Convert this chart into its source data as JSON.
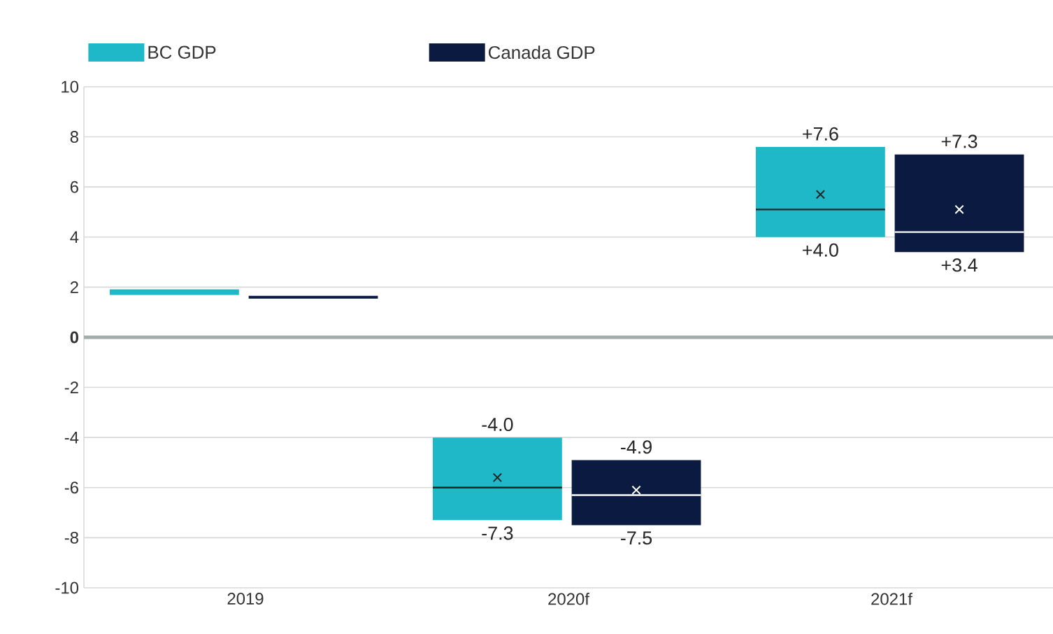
{
  "chart_data": {
    "type": "box",
    "categories": [
      "2019",
      "2020f",
      "2021f"
    ],
    "series": [
      {
        "name": "BC GDP",
        "color": "#1fb8c9",
        "boxes": [
          {
            "low": 1.8,
            "q1": 1.8,
            "median": 1.8,
            "q3": 1.8,
            "high": 1.8
          },
          {
            "low": -7.3,
            "q1": -7.3,
            "median": -6.0,
            "q3": -4.0,
            "high": -4.0,
            "mean": -5.6
          },
          {
            "low": 4.0,
            "q1": 4.0,
            "median": 5.1,
            "q3": 7.6,
            "high": 7.6,
            "mean": 5.7
          }
        ]
      },
      {
        "name": "Canada GDP",
        "color": "#0b1a40",
        "boxes": [
          {
            "low": 1.6,
            "q1": 1.6,
            "median": 1.6,
            "q3": 1.6,
            "high": 1.6
          },
          {
            "low": -7.5,
            "q1": -7.5,
            "median": -6.3,
            "q3": -4.9,
            "high": -4.9,
            "mean": -6.1
          },
          {
            "low": 3.4,
            "q1": 3.4,
            "median": 4.2,
            "q3": 7.3,
            "high": 7.3,
            "mean": 5.1
          }
        ]
      }
    ],
    "ylim": [
      -10,
      10
    ],
    "yticks": [
      -10,
      -8,
      -6,
      -4,
      -2,
      {
        "value": 0,
        "label": "**0**"
      },
      2,
      4,
      6,
      8,
      10
    ],
    "grid": "y",
    "legend": "top",
    "ref_lines": [
      {
        "axis": "y",
        "value": 0,
        "color": "#a3abab"
      }
    ],
    "annotations": [
      {
        "text": "-4.0",
        "x": "2020f",
        "y": -4.0
      },
      {
        "text": "-7.3",
        "x": "2020f",
        "y": -7.3
      },
      {
        "text": "-4.9",
        "x": "2020f",
        "y": -4.9
      },
      {
        "text": "-7.5",
        "x": "2020f",
        "y": -7.5
      },
      {
        "text": "+7.6",
        "x": "2021f",
        "y": 7.6
      },
      {
        "text": "+4.0",
        "x": "2021f",
        "y": 4.0
      },
      {
        "text": "+7.3",
        "x": "2021f",
        "y": 7.3
      },
      {
        "text": "+3.4",
        "x": "2021f",
        "y": 3.4
      }
    ]
  }
}
